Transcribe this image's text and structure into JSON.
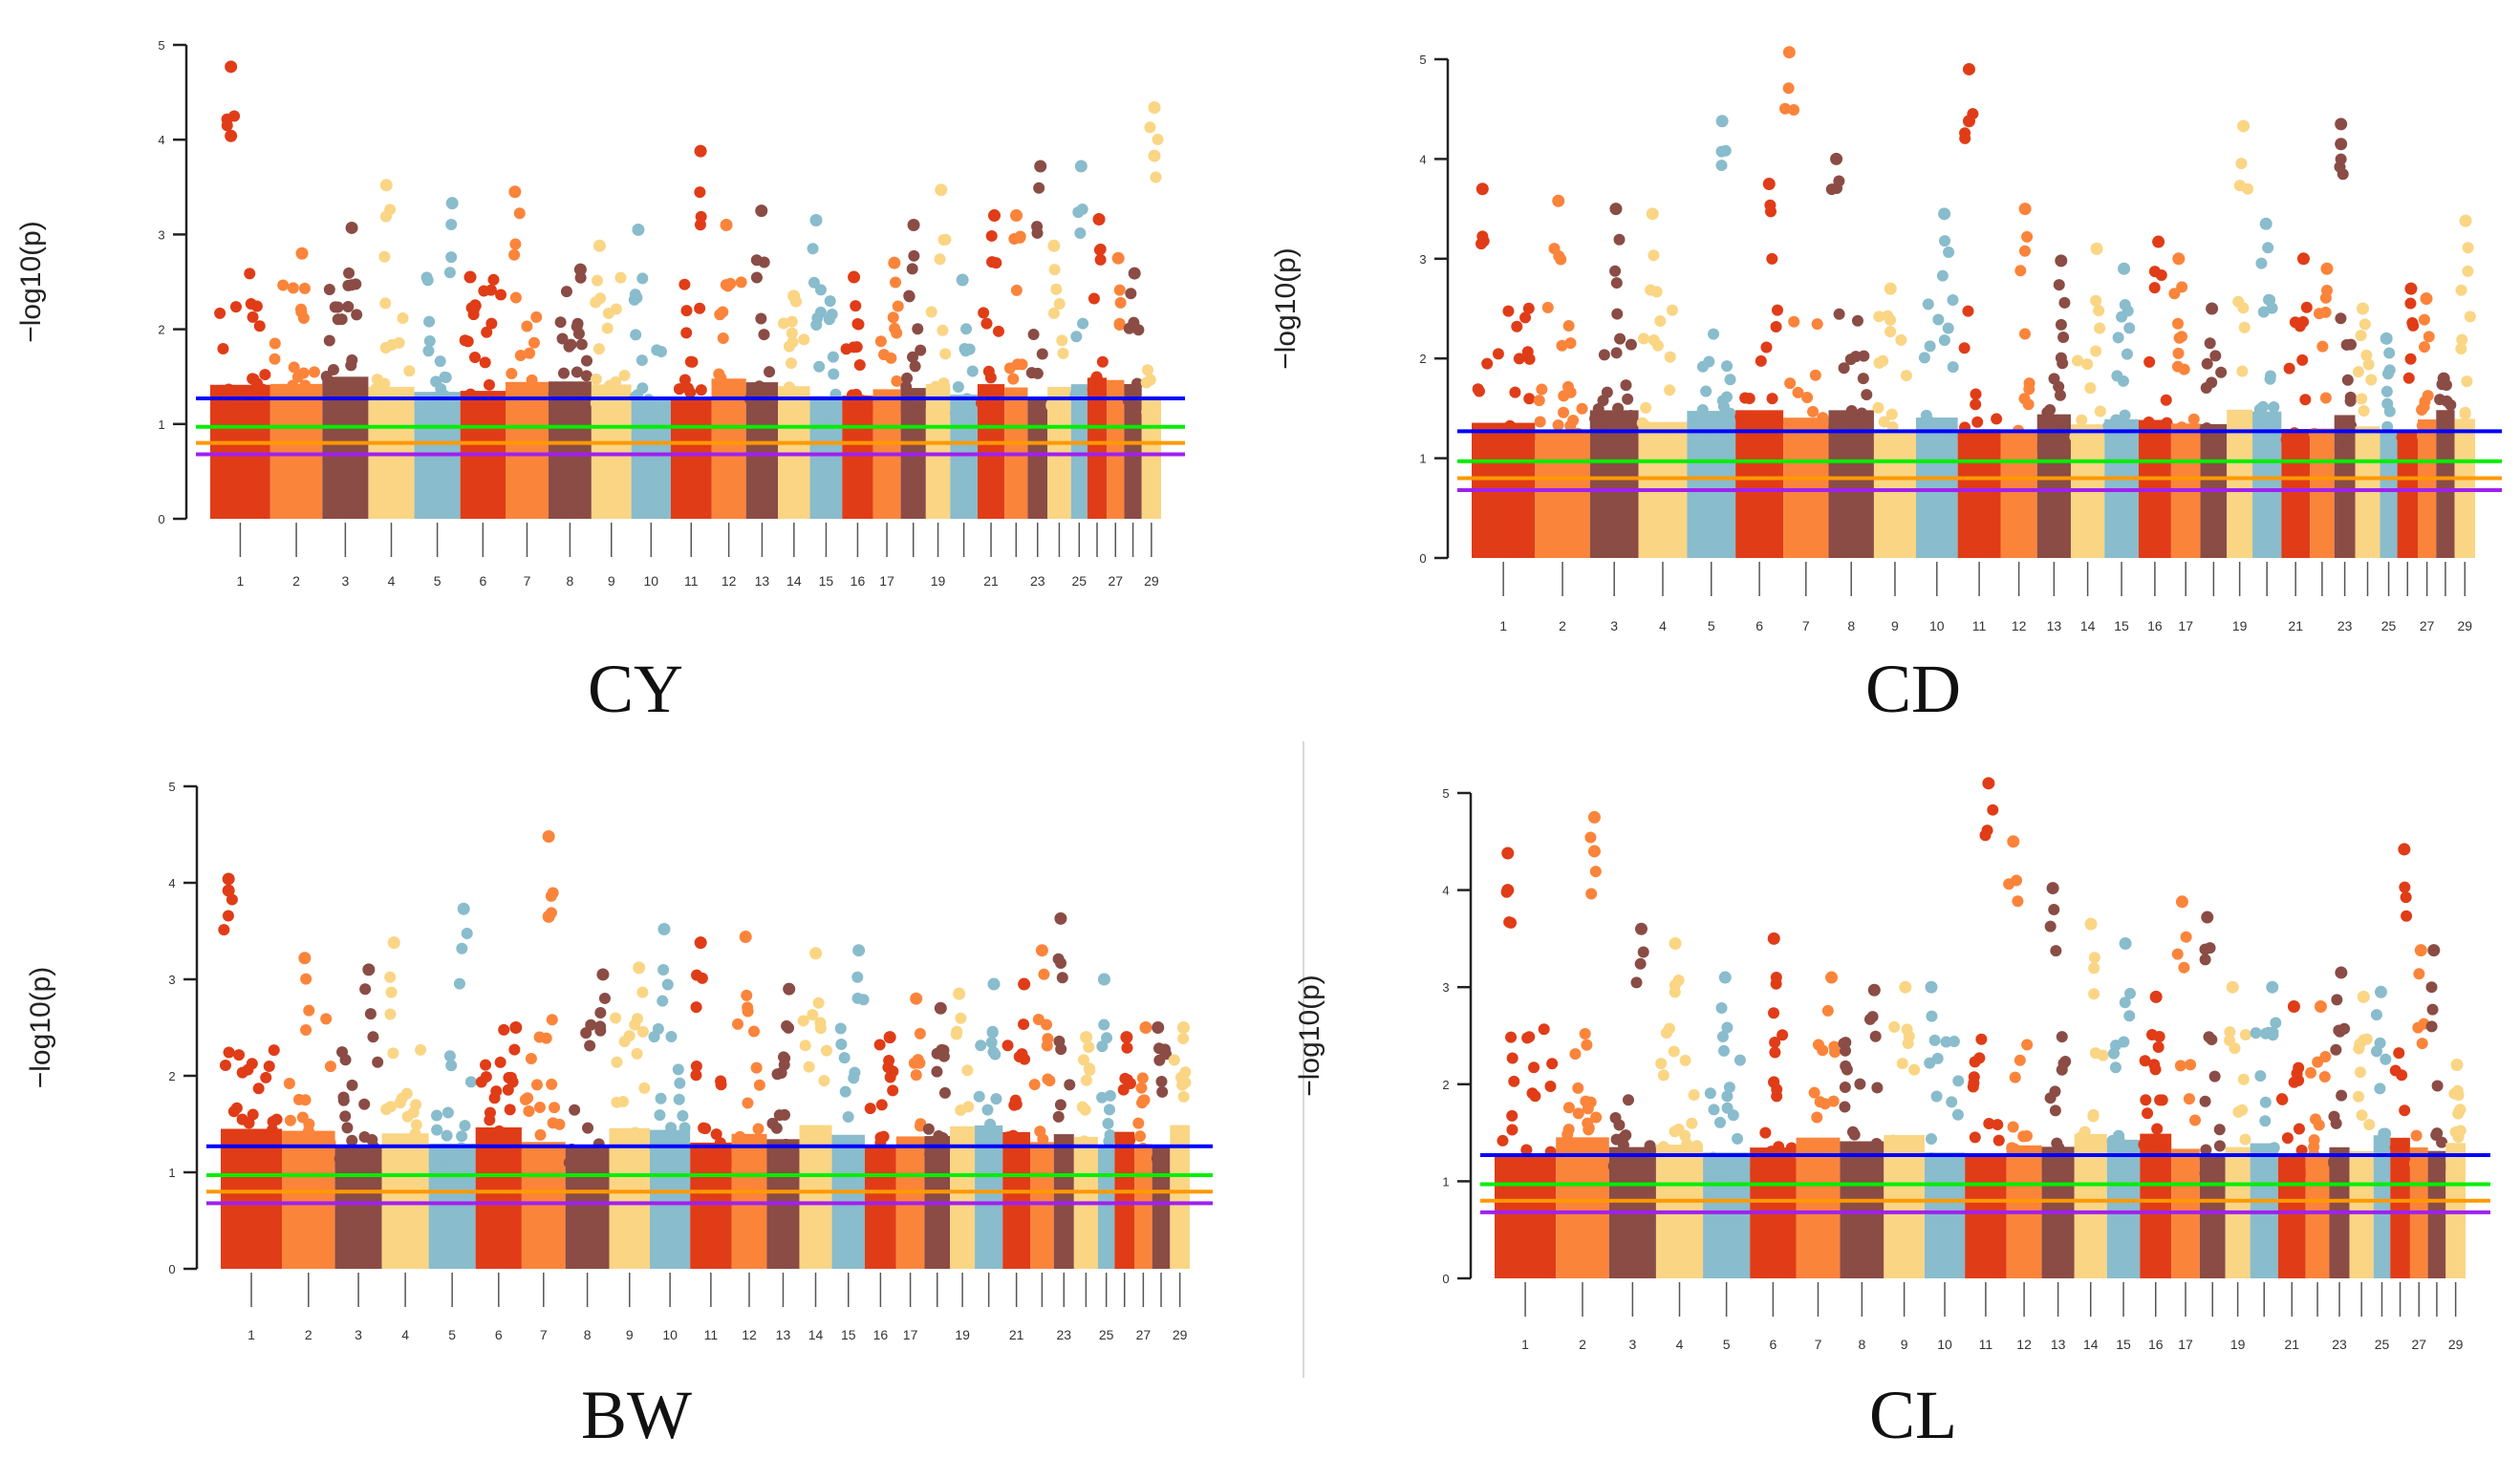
{
  "chart_data": [
    {
      "type": "scatter",
      "subtype": "manhattan",
      "title": "CY",
      "ylabel": "−log10(p)",
      "ylim": [
        0,
        5
      ],
      "yticks": [
        "0",
        "1",
        "2",
        "3",
        "4",
        "5"
      ],
      "chromosomes": [
        "1",
        "2",
        "3",
        "4",
        "5",
        "6",
        "7",
        "8",
        "9",
        "10",
        "11",
        "12",
        "13",
        "14",
        "15",
        "16",
        "17",
        "18",
        "19",
        "20",
        "21",
        "22",
        "23",
        "24",
        "25",
        "26",
        "27",
        "28",
        "29"
      ],
      "xtick_labels_shown": [
        "1",
        "2",
        "3",
        "4",
        "5",
        "6",
        "7",
        "8",
        "9",
        "10",
        "11",
        "12",
        "13",
        "14",
        "15",
        "16",
        "17",
        "19",
        "21",
        "23",
        "25",
        "27",
        "29"
      ],
      "thresholds": [
        {
          "color": "#0000ff",
          "value": 1.27
        },
        {
          "color": "#00ee00",
          "value": 0.97
        },
        {
          "color": "#ff9900",
          "value": 0.8
        },
        {
          "color": "#a020f0",
          "value": 0.68
        }
      ],
      "peak_values": [
        4.77,
        2.8,
        3.07,
        3.52,
        3.33,
        2.55,
        3.45,
        2.63,
        2.88,
        3.05,
        3.88,
        3.1,
        3.25,
        2.35,
        3.15,
        2.55,
        2.7,
        3.1,
        3.47,
        2.52,
        3.2,
        3.2,
        3.72,
        2.88,
        3.72,
        3.16,
        2.75,
        2.59,
        4.34
      ],
      "secondary_peaks": {
        "1": 4.04,
        "29": 3.83
      }
    },
    {
      "type": "scatter",
      "subtype": "manhattan",
      "title": "CD",
      "ylabel": "−log10(p)",
      "ylim": [
        0,
        5
      ],
      "yticks": [
        "0",
        "1",
        "2",
        "3",
        "4",
        "5"
      ],
      "chromosomes": [
        "1",
        "2",
        "3",
        "4",
        "5",
        "6",
        "7",
        "8",
        "9",
        "10",
        "11",
        "12",
        "13",
        "14",
        "15",
        "16",
        "17",
        "18",
        "19",
        "20",
        "21",
        "22",
        "23",
        "24",
        "25",
        "26",
        "27",
        "28",
        "29"
      ],
      "xtick_labels_shown": [
        "1",
        "2",
        "3",
        "4",
        "5",
        "6",
        "7",
        "8",
        "9",
        "10",
        "11",
        "12",
        "13",
        "14",
        "15",
        "16",
        "17",
        "19",
        "21",
        "23",
        "25",
        "27",
        "29"
      ],
      "thresholds": [
        {
          "color": "#0000ff",
          "value": 1.27
        },
        {
          "color": "#00ee00",
          "value": 0.97
        },
        {
          "color": "#ff9900",
          "value": 0.8
        },
        {
          "color": "#a020f0",
          "value": 0.68
        }
      ],
      "peak_values": [
        3.7,
        3.58,
        3.5,
        3.45,
        4.38,
        3.75,
        5.07,
        4.0,
        2.7,
        3.45,
        4.9,
        3.5,
        2.98,
        3.1,
        2.9,
        3.17,
        3.0,
        2.5,
        4.33,
        3.35,
        3.0,
        2.9,
        4.35,
        2.5,
        2.2,
        2.7,
        2.6,
        1.8,
        3.38
      ],
      "secondary_peaks": {
        "11": 4.38,
        "23": 4.15
      }
    },
    {
      "type": "scatter",
      "subtype": "manhattan",
      "title": "BW",
      "ylabel": "−log10(p)",
      "ylim": [
        0,
        5
      ],
      "yticks": [
        "0",
        "1",
        "2",
        "3",
        "4",
        "5"
      ],
      "chromosomes": [
        "1",
        "2",
        "3",
        "4",
        "5",
        "6",
        "7",
        "8",
        "9",
        "10",
        "11",
        "12",
        "13",
        "14",
        "15",
        "16",
        "17",
        "18",
        "19",
        "20",
        "21",
        "22",
        "23",
        "24",
        "25",
        "26",
        "27",
        "28",
        "29"
      ],
      "xtick_labels_shown": [
        "1",
        "2",
        "3",
        "4",
        "5",
        "6",
        "7",
        "8",
        "9",
        "10",
        "11",
        "12",
        "13",
        "14",
        "15",
        "16",
        "17",
        "19",
        "21",
        "23",
        "25",
        "27",
        "29"
      ],
      "thresholds": [
        {
          "color": "#0000ff",
          "value": 1.27
        },
        {
          "color": "#00ee00",
          "value": 0.97
        },
        {
          "color": "#ff9900",
          "value": 0.8
        },
        {
          "color": "#a020f0",
          "value": 0.68
        }
      ],
      "peak_values": [
        4.04,
        3.22,
        3.1,
        3.38,
        3.73,
        2.5,
        4.48,
        3.05,
        3.12,
        3.52,
        3.38,
        3.44,
        2.9,
        3.27,
        3.3,
        2.4,
        2.8,
        2.7,
        2.85,
        2.95,
        2.95,
        3.3,
        3.63,
        2.4,
        3.0,
        2.4,
        2.5,
        2.5,
        2.5
      ],
      "secondary_peaks": {
        "1": 3.92,
        "7": 3.65
      }
    },
    {
      "type": "scatter",
      "subtype": "manhattan",
      "title": "CL",
      "ylabel": "−log10(p)",
      "ylim": [
        0,
        5
      ],
      "yticks": [
        "0",
        "1",
        "2",
        "3",
        "4",
        "5"
      ],
      "chromosomes": [
        "1",
        "2",
        "3",
        "4",
        "5",
        "6",
        "7",
        "8",
        "9",
        "10",
        "11",
        "12",
        "13",
        "14",
        "15",
        "16",
        "17",
        "18",
        "19",
        "20",
        "21",
        "22",
        "23",
        "24",
        "25",
        "26",
        "27",
        "28",
        "29"
      ],
      "xtick_labels_shown": [
        "1",
        "2",
        "3",
        "4",
        "5",
        "6",
        "7",
        "8",
        "9",
        "10",
        "11",
        "12",
        "13",
        "14",
        "15",
        "16",
        "17",
        "19",
        "21",
        "23",
        "25",
        "27",
        "29"
      ],
      "thresholds": [
        {
          "color": "#0000ff",
          "value": 1.27
        },
        {
          "color": "#00ee00",
          "value": 0.97
        },
        {
          "color": "#ff9900",
          "value": 0.8
        },
        {
          "color": "#a020f0",
          "value": 0.68
        }
      ],
      "peak_values": [
        4.38,
        4.75,
        3.6,
        3.45,
        3.1,
        3.5,
        3.1,
        2.97,
        3.0,
        3.0,
        5.1,
        4.5,
        4.02,
        3.65,
        3.45,
        2.9,
        3.88,
        3.72,
        3.0,
        3.0,
        2.8,
        2.8,
        3.15,
        2.9,
        2.95,
        4.42,
        3.38,
        3.38,
        2.2
      ],
      "secondary_peaks": {
        "2": 4.4,
        "1": 4.0
      }
    }
  ],
  "colors": [
    "#e03c17",
    "#fb843b",
    "#8a4c45",
    "#fad584",
    "#89bccc"
  ]
}
